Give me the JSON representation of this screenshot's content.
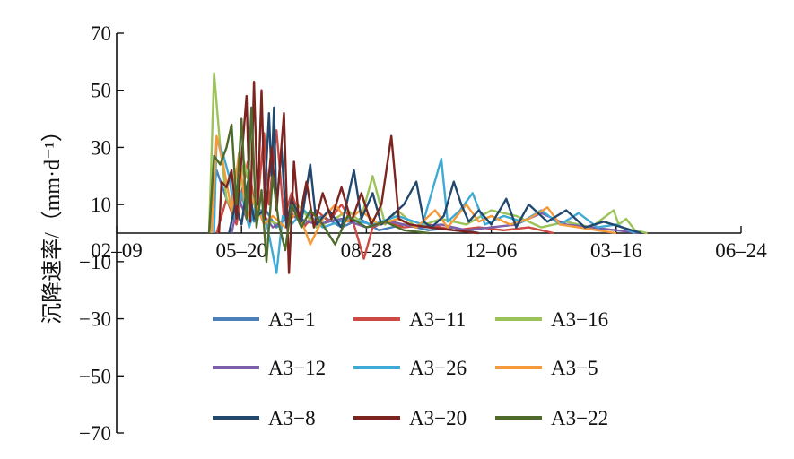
{
  "chart_data": {
    "type": "line",
    "title": "",
    "ylabel": "沉降速率/（mm·d⁻¹）",
    "xlabel": "",
    "ylim": [
      -70,
      70
    ],
    "yticks": [
      70,
      50,
      30,
      10,
      -10,
      -30,
      -50,
      -70
    ],
    "ytick_labels": [
      "70",
      "50",
      "30",
      "10",
      "−10",
      "−30",
      "−50",
      "−70"
    ],
    "x_start": "02-09",
    "xticks": [
      {
        "label": "02–09",
        "day": 0
      },
      {
        "label": "05–20",
        "day": 100
      },
      {
        "label": "08–28",
        "day": 200
      },
      {
        "label": "12–06",
        "day": 300
      },
      {
        "label": "03–16",
        "day": 400
      },
      {
        "label": "06–24",
        "day": 500
      }
    ],
    "legend_position": "bottom-center",
    "grid": false,
    "series": [
      {
        "name": "A3−1",
        "color": "#4a7fba",
        "points": [
          [
            74,
            0
          ],
          [
            80,
            22
          ],
          [
            88,
            12
          ],
          [
            95,
            5
          ],
          [
            102,
            18
          ],
          [
            110,
            4
          ],
          [
            118,
            9
          ],
          [
            128,
            2
          ],
          [
            140,
            7
          ],
          [
            150,
            3
          ],
          [
            165,
            6
          ],
          [
            180,
            2
          ],
          [
            195,
            5
          ],
          [
            210,
            1
          ],
          [
            230,
            3
          ],
          [
            250,
            1
          ],
          [
            270,
            2
          ],
          [
            290,
            0
          ]
        ]
      },
      {
        "name": "A3−11",
        "color": "#cc4a43",
        "points": [
          [
            80,
            0
          ],
          [
            88,
            12
          ],
          [
            96,
            3
          ],
          [
            105,
            25
          ],
          [
            112,
            6
          ],
          [
            118,
            35
          ],
          [
            122,
            10
          ],
          [
            128,
            36
          ],
          [
            134,
            5
          ],
          [
            140,
            14
          ],
          [
            150,
            2
          ],
          [
            160,
            8
          ],
          [
            170,
            4
          ],
          [
            180,
            10
          ],
          [
            190,
            3
          ],
          [
            198,
            -9
          ],
          [
            205,
            2
          ],
          [
            215,
            4
          ],
          [
            230,
            2
          ],
          [
            250,
            3
          ],
          [
            270,
            1
          ],
          [
            290,
            2
          ],
          [
            310,
            1
          ],
          [
            330,
            2
          ],
          [
            350,
            0
          ]
        ]
      },
      {
        "name": "A3−16",
        "color": "#9cc35a",
        "points": [
          [
            74,
            0
          ],
          [
            78,
            56
          ],
          [
            83,
            30
          ],
          [
            88,
            12
          ],
          [
            95,
            6
          ],
          [
            102,
            25
          ],
          [
            110,
            10
          ],
          [
            118,
            5
          ],
          [
            130,
            3
          ],
          [
            145,
            10
          ],
          [
            160,
            2
          ],
          [
            175,
            5
          ],
          [
            185,
            8
          ],
          [
            195,
            4
          ],
          [
            205,
            20
          ],
          [
            215,
            3
          ],
          [
            225,
            8
          ],
          [
            240,
            2
          ],
          [
            260,
            5
          ],
          [
            280,
            3
          ],
          [
            300,
            8
          ],
          [
            320,
            6
          ],
          [
            340,
            2
          ],
          [
            360,
            4
          ],
          [
            380,
            2
          ],
          [
            398,
            8
          ],
          [
            402,
            3
          ],
          [
            408,
            5
          ],
          [
            415,
            1
          ],
          [
            425,
            0
          ]
        ]
      },
      {
        "name": "A3−12",
        "color": "#7c5fa8",
        "points": [
          [
            92,
            0
          ],
          [
            98,
            12
          ],
          [
            105,
            4
          ],
          [
            115,
            8
          ],
          [
            125,
            2
          ],
          [
            140,
            6
          ],
          [
            160,
            3
          ],
          [
            180,
            5
          ],
          [
            200,
            2
          ],
          [
            220,
            4
          ],
          [
            240,
            2
          ],
          [
            260,
            3
          ],
          [
            280,
            1
          ],
          [
            300,
            2
          ],
          [
            320,
            3
          ],
          [
            340,
            7
          ],
          [
            360,
            3
          ],
          [
            380,
            2
          ],
          [
            400,
            1
          ],
          [
            420,
            0
          ]
        ]
      },
      {
        "name": "A3−26",
        "color": "#3eaad5",
        "points": [
          [
            78,
            0
          ],
          [
            80,
            33
          ],
          [
            85,
            28
          ],
          [
            90,
            20
          ],
          [
            95,
            5
          ],
          [
            100,
            14
          ],
          [
            106,
            2
          ],
          [
            112,
            10
          ],
          [
            120,
            4
          ],
          [
            128,
            -14
          ],
          [
            133,
            6
          ],
          [
            140,
            3
          ],
          [
            150,
            8
          ],
          [
            165,
            2
          ],
          [
            185,
            5
          ],
          [
            205,
            3
          ],
          [
            225,
            6
          ],
          [
            245,
            3
          ],
          [
            260,
            26
          ],
          [
            265,
            4
          ],
          [
            275,
            8
          ],
          [
            285,
            14
          ],
          [
            295,
            3
          ],
          [
            310,
            6
          ],
          [
            325,
            4
          ],
          [
            340,
            8
          ],
          [
            355,
            3
          ],
          [
            370,
            7
          ],
          [
            385,
            2
          ],
          [
            400,
            3
          ],
          [
            415,
            0
          ]
        ]
      },
      {
        "name": "A3−5",
        "color": "#f59a3a",
        "points": [
          [
            76,
            0
          ],
          [
            80,
            34
          ],
          [
            85,
            25
          ],
          [
            92,
            8
          ],
          [
            98,
            28
          ],
          [
            104,
            5
          ],
          [
            110,
            12
          ],
          [
            118,
            3
          ],
          [
            125,
            6
          ],
          [
            135,
            2
          ],
          [
            145,
            8
          ],
          [
            155,
            -4
          ],
          [
            165,
            5
          ],
          [
            175,
            10
          ],
          [
            185,
            4
          ],
          [
            195,
            8
          ],
          [
            210,
            3
          ],
          [
            225,
            5
          ],
          [
            240,
            2
          ],
          [
            255,
            8
          ],
          [
            265,
            2
          ],
          [
            280,
            10
          ],
          [
            290,
            4
          ],
          [
            300,
            6
          ],
          [
            315,
            3
          ],
          [
            330,
            5
          ],
          [
            345,
            9
          ],
          [
            355,
            3
          ],
          [
            370,
            2
          ],
          [
            385,
            1
          ],
          [
            400,
            0
          ]
        ]
      },
      {
        "name": "A3−8",
        "color": "#22486e",
        "points": [
          [
            90,
            0
          ],
          [
            95,
            10
          ],
          [
            100,
            3
          ],
          [
            105,
            18
          ],
          [
            110,
            5
          ],
          [
            118,
            8
          ],
          [
            122,
            42
          ],
          [
            124,
            20
          ],
          [
            126,
            44
          ],
          [
            128,
            8
          ],
          [
            132,
            30
          ],
          [
            136,
            2
          ],
          [
            140,
            12
          ],
          [
            148,
            4
          ],
          [
            155,
            24
          ],
          [
            160,
            3
          ],
          [
            170,
            8
          ],
          [
            180,
            2
          ],
          [
            190,
            22
          ],
          [
            196,
            5
          ],
          [
            205,
            14
          ],
          [
            212,
            3
          ],
          [
            220,
            6
          ],
          [
            230,
            10
          ],
          [
            240,
            18
          ],
          [
            246,
            4
          ],
          [
            252,
            2
          ],
          [
            262,
            6
          ],
          [
            270,
            18
          ],
          [
            276,
            10
          ],
          [
            282,
            4
          ],
          [
            290,
            8
          ],
          [
            300,
            3
          ],
          [
            312,
            12
          ],
          [
            320,
            2
          ],
          [
            330,
            10
          ],
          [
            345,
            4
          ],
          [
            360,
            8
          ],
          [
            375,
            2
          ],
          [
            390,
            4
          ],
          [
            405,
            2
          ],
          [
            420,
            0
          ]
        ]
      },
      {
        "name": "A3−20",
        "color": "#7b2420",
        "points": [
          [
            82,
            0
          ],
          [
            84,
            18
          ],
          [
            88,
            16
          ],
          [
            92,
            22
          ],
          [
            96,
            5
          ],
          [
            100,
            26
          ],
          [
            104,
            48
          ],
          [
            107,
            4
          ],
          [
            110,
            53
          ],
          [
            113,
            10
          ],
          [
            116,
            50
          ],
          [
            119,
            5
          ],
          [
            124,
            30
          ],
          [
            128,
            8
          ],
          [
            134,
            42
          ],
          [
            138,
            -14
          ],
          [
            142,
            25
          ],
          [
            146,
            4
          ],
          [
            152,
            18
          ],
          [
            158,
            2
          ],
          [
            165,
            14
          ],
          [
            172,
            5
          ],
          [
            180,
            16
          ],
          [
            188,
            4
          ],
          [
            196,
            14
          ],
          [
            204,
            3
          ],
          [
            212,
            10
          ],
          [
            220,
            34
          ],
          [
            226,
            5
          ],
          [
            235,
            3
          ],
          [
            250,
            2
          ],
          [
            270,
            1
          ],
          [
            290,
            0
          ]
        ]
      },
      {
        "name": "A3−22",
        "color": "#4e6b2b",
        "points": [
          [
            74,
            0
          ],
          [
            78,
            27
          ],
          [
            83,
            24
          ],
          [
            88,
            30
          ],
          [
            92,
            38
          ],
          [
            96,
            10
          ],
          [
            100,
            40
          ],
          [
            104,
            5
          ],
          [
            108,
            44
          ],
          [
            112,
            2
          ],
          [
            116,
            15
          ],
          [
            120,
            -10
          ],
          [
            125,
            20
          ],
          [
            130,
            3
          ],
          [
            135,
            -6
          ],
          [
            140,
            10
          ],
          [
            148,
            2
          ],
          [
            155,
            8
          ],
          [
            165,
            3
          ],
          [
            175,
            -4
          ],
          [
            185,
            6
          ],
          [
            200,
            2
          ],
          [
            215,
            4
          ],
          [
            230,
            1
          ],
          [
            250,
            0
          ]
        ]
      }
    ]
  }
}
